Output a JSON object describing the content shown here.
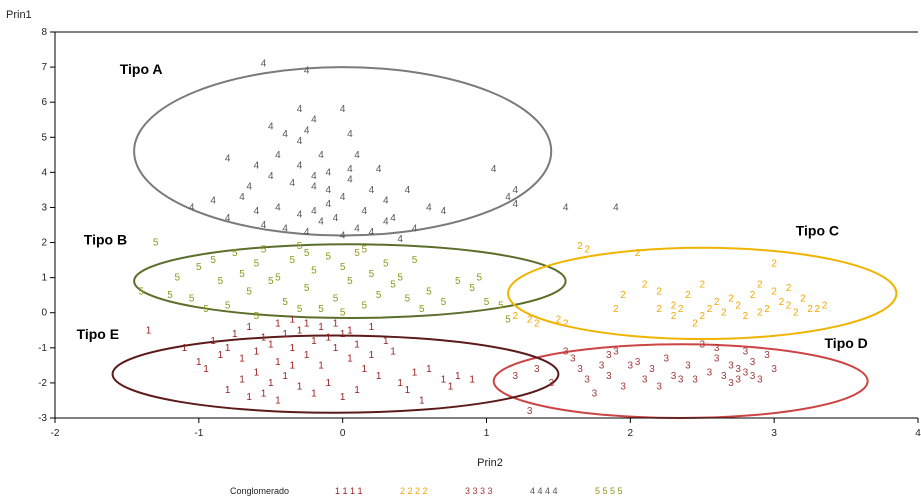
{
  "chart_data": {
    "type": "scatter",
    "xlabel": "Prin2",
    "ylabel": "Prin1",
    "xlim": [
      -2,
      4
    ],
    "ylim": [
      -3,
      8
    ],
    "x_ticks": [
      -2,
      -1,
      0,
      1,
      2,
      3,
      4
    ],
    "y_ticks": [
      -3,
      -2,
      -1,
      0,
      1,
      2,
      3,
      4,
      5,
      6,
      7,
      8
    ],
    "grid": false,
    "legend": {
      "placement": "bottom",
      "title": "Conglomerado",
      "entries": [
        {
          "label": "1 1 1 1",
          "color": "#9b1c1c"
        },
        {
          "label": "2 2 2 2",
          "color": "#f0a800"
        },
        {
          "label": "3 3 3 3",
          "color": "#a33a3a"
        },
        {
          "label": "4 4 4 4",
          "color": "#555555"
        },
        {
          "label": "5 5 5 5",
          "color": "#8a9a1e"
        }
      ]
    },
    "series": [
      {
        "name": "1",
        "color": "#9b1c1c",
        "points": [
          [
            -1.35,
            -0.5
          ],
          [
            -0.9,
            -0.8
          ],
          [
            -0.8,
            -1.0
          ],
          [
            -0.7,
            -1.3
          ],
          [
            -0.6,
            -1.1
          ],
          [
            -0.55,
            -0.7
          ],
          [
            -0.5,
            -0.9
          ],
          [
            -0.45,
            -1.4
          ],
          [
            -0.4,
            -0.6
          ],
          [
            -0.35,
            -1.0
          ],
          [
            -0.3,
            -0.5
          ],
          [
            -0.25,
            -1.2
          ],
          [
            -0.2,
            -0.8
          ],
          [
            -0.15,
            -1.5
          ],
          [
            -0.1,
            -0.7
          ],
          [
            -0.05,
            -1.0
          ],
          [
            0.0,
            -0.6
          ],
          [
            0.05,
            -1.3
          ],
          [
            0.1,
            -0.9
          ],
          [
            0.15,
            -1.6
          ],
          [
            -0.6,
            -1.7
          ],
          [
            -0.5,
            -2.0
          ],
          [
            -0.4,
            -1.8
          ],
          [
            -0.3,
            -2.1
          ],
          [
            -0.7,
            -1.9
          ],
          [
            -0.8,
            -2.2
          ],
          [
            -0.65,
            -2.4
          ],
          [
            -0.55,
            -2.3
          ],
          [
            -0.2,
            -2.3
          ],
          [
            -0.1,
            -2.0
          ],
          [
            0.2,
            -1.2
          ],
          [
            0.3,
            -0.8
          ],
          [
            0.35,
            -1.1
          ],
          [
            0.5,
            -1.7
          ],
          [
            0.6,
            -1.6
          ],
          [
            0.7,
            -1.9
          ],
          [
            0.8,
            -1.8
          ],
          [
            0.9,
            -1.9
          ],
          [
            0.75,
            -2.1
          ],
          [
            0.55,
            -2.5
          ],
          [
            -1.1,
            -1.0
          ],
          [
            -1.0,
            -1.4
          ],
          [
            -0.95,
            -1.6
          ],
          [
            -0.85,
            -1.2
          ],
          [
            -0.75,
            -0.6
          ],
          [
            -0.65,
            -0.4
          ],
          [
            -0.45,
            -0.3
          ],
          [
            -0.35,
            -0.2
          ],
          [
            -0.25,
            -0.3
          ],
          [
            -0.15,
            -0.4
          ],
          [
            -0.05,
            -0.3
          ],
          [
            0.05,
            -0.5
          ],
          [
            0.2,
            -0.4
          ],
          [
            0.25,
            -1.8
          ],
          [
            0.4,
            -2.0
          ],
          [
            0.45,
            -2.2
          ],
          [
            0.1,
            -2.2
          ],
          [
            0.0,
            -2.4
          ],
          [
            -0.45,
            -2.5
          ],
          [
            -0.35,
            -1.5
          ]
        ]
      },
      {
        "name": "2",
        "color": "#f0a800",
        "points": [
          [
            1.65,
            1.9
          ],
          [
            1.7,
            1.8
          ],
          [
            2.05,
            1.7
          ],
          [
            2.1,
            0.8
          ],
          [
            2.2,
            0.1
          ],
          [
            2.3,
            0.2
          ],
          [
            2.35,
            0.1
          ],
          [
            2.4,
            0.5
          ],
          [
            2.5,
            -0.1
          ],
          [
            2.55,
            0.1
          ],
          [
            2.6,
            0.3
          ],
          [
            2.65,
            0.0
          ],
          [
            2.7,
            0.4
          ],
          [
            2.75,
            0.2
          ],
          [
            2.8,
            -0.1
          ],
          [
            2.85,
            0.5
          ],
          [
            2.9,
            0.0
          ],
          [
            2.95,
            0.1
          ],
          [
            3.0,
            0.6
          ],
          [
            3.05,
            0.3
          ],
          [
            3.1,
            0.2
          ],
          [
            3.15,
            0.0
          ],
          [
            3.2,
            0.4
          ],
          [
            3.25,
            0.1
          ],
          [
            3.3,
            0.1
          ],
          [
            3.35,
            0.2
          ],
          [
            3.0,
            1.4
          ],
          [
            2.5,
            0.8
          ],
          [
            2.2,
            0.6
          ],
          [
            1.95,
            0.5
          ],
          [
            2.9,
            0.8
          ],
          [
            3.1,
            0.7
          ],
          [
            1.2,
            -0.1
          ],
          [
            1.3,
            -0.2
          ],
          [
            1.35,
            -0.3
          ],
          [
            1.5,
            -0.2
          ],
          [
            1.55,
            -0.3
          ],
          [
            1.9,
            0.1
          ],
          [
            2.3,
            -0.1
          ],
          [
            2.45,
            -0.3
          ]
        ]
      },
      {
        "name": "3",
        "color": "#a33a3a",
        "points": [
          [
            1.2,
            -1.8
          ],
          [
            1.35,
            -1.6
          ],
          [
            1.45,
            -2.0
          ],
          [
            1.55,
            -1.1
          ],
          [
            1.65,
            -1.6
          ],
          [
            1.7,
            -1.9
          ],
          [
            1.8,
            -1.5
          ],
          [
            1.85,
            -1.8
          ],
          [
            1.95,
            -2.1
          ],
          [
            2.0,
            -1.5
          ],
          [
            2.1,
            -1.9
          ],
          [
            2.15,
            -1.6
          ],
          [
            2.2,
            -2.1
          ],
          [
            2.25,
            -1.3
          ],
          [
            2.3,
            -1.8
          ],
          [
            2.35,
            -1.9
          ],
          [
            2.4,
            -1.5
          ],
          [
            2.45,
            -1.9
          ],
          [
            2.55,
            -1.7
          ],
          [
            2.6,
            -1.3
          ],
          [
            2.65,
            -1.8
          ],
          [
            2.7,
            -1.5
          ],
          [
            2.75,
            -1.6
          ],
          [
            2.8,
            -1.7
          ],
          [
            2.85,
            -1.4
          ],
          [
            2.9,
            -1.9
          ],
          [
            2.95,
            -1.2
          ],
          [
            3.0,
            -1.6
          ],
          [
            2.75,
            -1.9
          ],
          [
            2.8,
            -1.1
          ],
          [
            1.3,
            -2.8
          ],
          [
            1.75,
            -2.3
          ],
          [
            1.85,
            -1.2
          ],
          [
            2.6,
            -1.0
          ],
          [
            2.5,
            -0.9
          ],
          [
            1.6,
            -1.3
          ],
          [
            1.9,
            -1.1
          ],
          [
            2.05,
            -1.4
          ],
          [
            2.7,
            -2.0
          ],
          [
            2.85,
            -1.8
          ]
        ]
      },
      {
        "name": "4",
        "color": "#555555",
        "points": [
          [
            -0.55,
            7.1
          ],
          [
            -0.25,
            6.9
          ],
          [
            -0.3,
            5.8
          ],
          [
            -0.2,
            5.5
          ],
          [
            0.0,
            5.8
          ],
          [
            -0.5,
            5.3
          ],
          [
            -0.4,
            5.1
          ],
          [
            -0.3,
            4.9
          ],
          [
            -0.15,
            4.5
          ],
          [
            0.1,
            4.5
          ],
          [
            -0.6,
            4.2
          ],
          [
            -0.8,
            4.4
          ],
          [
            -0.5,
            3.9
          ],
          [
            -0.35,
            3.7
          ],
          [
            -0.2,
            3.6
          ],
          [
            -0.1,
            3.5
          ],
          [
            0.05,
            3.8
          ],
          [
            0.2,
            3.5
          ],
          [
            0.3,
            3.2
          ],
          [
            -0.7,
            3.3
          ],
          [
            -0.9,
            3.2
          ],
          [
            -1.05,
            3.0
          ],
          [
            -0.6,
            2.9
          ],
          [
            -0.45,
            3.0
          ],
          [
            -0.3,
            2.8
          ],
          [
            -0.2,
            2.9
          ],
          [
            -0.1,
            3.1
          ],
          [
            0.0,
            3.3
          ],
          [
            0.15,
            2.9
          ],
          [
            0.35,
            2.7
          ],
          [
            -0.55,
            2.5
          ],
          [
            -0.4,
            2.4
          ],
          [
            -0.25,
            2.3
          ],
          [
            -0.15,
            2.6
          ],
          [
            0.0,
            2.2
          ],
          [
            0.1,
            2.4
          ],
          [
            0.2,
            2.3
          ],
          [
            0.4,
            2.1
          ],
          [
            0.5,
            2.4
          ],
          [
            -0.8,
            2.7
          ],
          [
            1.05,
            4.1
          ],
          [
            1.2,
            3.5
          ],
          [
            1.15,
            3.3
          ],
          [
            1.2,
            3.1
          ],
          [
            1.55,
            3.0
          ],
          [
            1.9,
            3.0
          ],
          [
            0.6,
            3.0
          ],
          [
            0.7,
            2.9
          ],
          [
            -0.3,
            4.2
          ],
          [
            -0.1,
            4.0
          ],
          [
            -0.2,
            3.9
          ],
          [
            0.05,
            4.1
          ],
          [
            0.25,
            4.1
          ],
          [
            -0.45,
            4.5
          ],
          [
            -0.25,
            5.2
          ],
          [
            0.05,
            5.1
          ],
          [
            -0.65,
            3.6
          ],
          [
            0.45,
            3.5
          ],
          [
            0.3,
            2.6
          ],
          [
            -0.05,
            2.7
          ]
        ]
      },
      {
        "name": "5",
        "color": "#8a9a1e",
        "points": [
          [
            -1.3,
            2.0
          ],
          [
            -1.4,
            0.6
          ],
          [
            -1.2,
            0.5
          ],
          [
            -1.05,
            0.4
          ],
          [
            -1.0,
            1.3
          ],
          [
            -0.9,
            1.5
          ],
          [
            -0.85,
            0.9
          ],
          [
            -0.8,
            0.2
          ],
          [
            -0.7,
            1.1
          ],
          [
            -0.65,
            0.6
          ],
          [
            -0.6,
            1.4
          ],
          [
            -0.55,
            1.8
          ],
          [
            -0.5,
            0.9
          ],
          [
            -0.45,
            1.0
          ],
          [
            -0.4,
            0.3
          ],
          [
            -0.35,
            1.5
          ],
          [
            -0.3,
            1.9
          ],
          [
            -0.25,
            0.7
          ],
          [
            -0.2,
            1.2
          ],
          [
            -0.15,
            0.1
          ],
          [
            -0.1,
            1.6
          ],
          [
            -0.05,
            0.4
          ],
          [
            0.0,
            1.3
          ],
          [
            0.05,
            0.9
          ],
          [
            0.1,
            1.7
          ],
          [
            0.15,
            0.2
          ],
          [
            0.2,
            1.1
          ],
          [
            0.25,
            0.5
          ],
          [
            0.3,
            1.4
          ],
          [
            0.35,
            0.8
          ],
          [
            0.4,
            1.0
          ],
          [
            0.45,
            0.4
          ],
          [
            0.5,
            1.5
          ],
          [
            0.6,
            0.6
          ],
          [
            0.7,
            0.3
          ],
          [
            0.8,
            0.9
          ],
          [
            0.9,
            0.7
          ],
          [
            1.0,
            0.3
          ],
          [
            1.1,
            0.2
          ],
          [
            1.15,
            -0.2
          ],
          [
            -0.75,
            1.7
          ],
          [
            -0.25,
            1.7
          ],
          [
            0.15,
            1.8
          ],
          [
            -0.6,
            -0.1
          ],
          [
            -0.3,
            0.1
          ],
          [
            0.0,
            0.0
          ],
          [
            0.55,
            0.1
          ],
          [
            0.95,
            1.0
          ],
          [
            -1.15,
            1.0
          ],
          [
            -0.95,
            0.1
          ]
        ]
      }
    ],
    "ellipses": [
      {
        "label": "Tipo A",
        "cx": 0.0,
        "cy": 4.6,
        "rx": 1.45,
        "ry": 2.4,
        "color": "#7a7a7a"
      },
      {
        "label": "Tipo B",
        "cx": 0.05,
        "cy": 0.9,
        "rx": 1.5,
        "ry": 1.05,
        "color": "#5b6e2a"
      },
      {
        "label": "Tipo C",
        "cx": 2.5,
        "cy": 0.55,
        "rx": 1.35,
        "ry": 1.3,
        "color": "#f0b400"
      },
      {
        "label": "Tipo D",
        "cx": 2.35,
        "cy": -1.95,
        "rx": 1.3,
        "ry": 1.05,
        "color": "#cc4444"
      },
      {
        "label": "Tipo E",
        "cx": -0.05,
        "cy": -1.75,
        "rx": 1.55,
        "ry": 1.1,
        "color": "#5c1a1a"
      }
    ],
    "annotations": [
      {
        "text": "Tipo A",
        "x": -1.55,
        "y": 6.8
      },
      {
        "text": "Tipo B",
        "x": -1.8,
        "y": 1.95
      },
      {
        "text": "Tipo C",
        "x": 3.15,
        "y": 2.2
      },
      {
        "text": "Tipo D",
        "x": 3.35,
        "y": -1.0
      },
      {
        "text": "Tipo E",
        "x": -1.85,
        "y": -0.75
      }
    ]
  }
}
